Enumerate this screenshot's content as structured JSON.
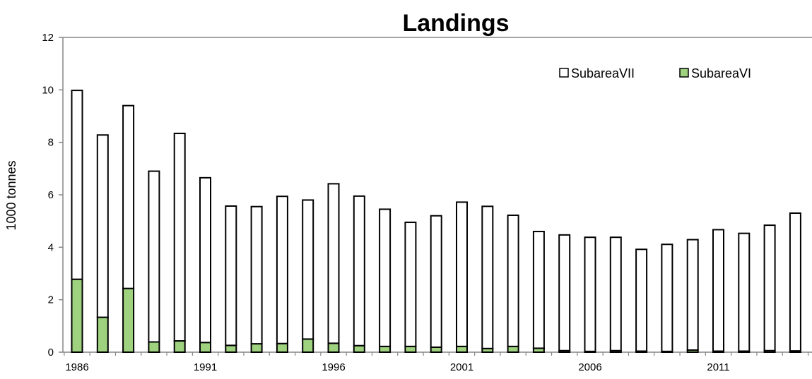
{
  "chart_data": {
    "type": "bar",
    "stacked": true,
    "title": "Landings",
    "ylabel": "1000 tonnes",
    "xlabel": "",
    "ylim": [
      0,
      12
    ],
    "yticks": [
      0,
      2,
      4,
      6,
      8,
      10,
      12
    ],
    "xticks": [
      1986,
      1991,
      1996,
      2001,
      2006,
      2011
    ],
    "categories": [
      1986,
      1987,
      1988,
      1989,
      1990,
      1991,
      1992,
      1993,
      1994,
      1995,
      1996,
      1997,
      1998,
      1999,
      2000,
      2001,
      2002,
      2003,
      2004,
      2005,
      2006,
      2007,
      2008,
      2009,
      2010,
      2011,
      2012,
      2013,
      2014
    ],
    "series": [
      {
        "name": "SubareaVI",
        "color": "#9ed27f",
        "values": [
          2.78,
          1.33,
          2.43,
          0.39,
          0.43,
          0.37,
          0.26,
          0.32,
          0.33,
          0.5,
          0.34,
          0.25,
          0.22,
          0.22,
          0.19,
          0.22,
          0.14,
          0.22,
          0.15,
          0.06,
          0.03,
          0.06,
          0.04,
          0.03,
          0.08,
          0.04,
          0.04,
          0.06,
          0.05
        ]
      },
      {
        "name": "SubareaVII",
        "color": "#ffffff",
        "values": [
          7.2,
          6.95,
          6.97,
          6.51,
          7.91,
          6.28,
          5.31,
          5.23,
          5.61,
          5.3,
          6.08,
          5.7,
          5.23,
          4.73,
          5.01,
          5.5,
          5.42,
          5.0,
          4.45,
          4.41,
          4.35,
          4.32,
          3.88,
          4.08,
          4.21,
          4.63,
          4.49,
          4.78,
          5.25
        ]
      }
    ],
    "legend": {
      "position": "top-right",
      "entries": [
        "SubareaVII",
        "SubareaVI"
      ]
    },
    "grid": false
  }
}
